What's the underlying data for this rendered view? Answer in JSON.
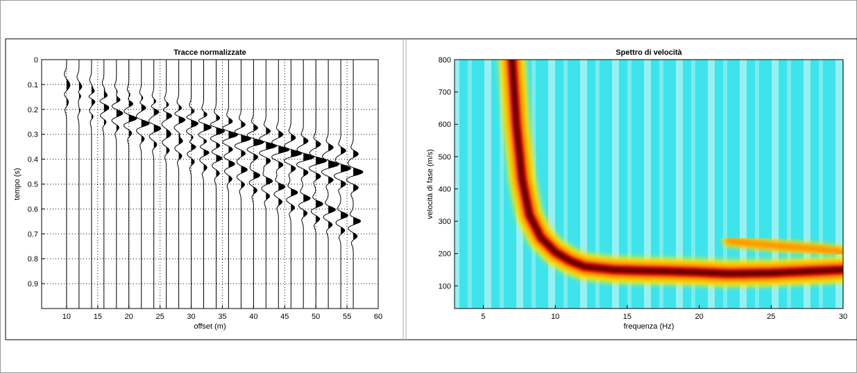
{
  "chart_data": [
    {
      "type": "wiggle",
      "title": "Tracce normalizzate",
      "xlabel": "offset (m)",
      "ylabel": "tempo (s)",
      "x": [
        10,
        12,
        14,
        16,
        18,
        20,
        22,
        24,
        26,
        28,
        30,
        32,
        34,
        36,
        38,
        40,
        42,
        44,
        46,
        48,
        50,
        52,
        54,
        56
      ],
      "arrivals": [
        [
          0.08,
          0.093,
          0.106,
          0.119,
          0.132,
          0.145,
          0.158,
          0.171,
          0.184,
          0.197,
          0.21,
          0.223,
          0.236,
          0.249,
          0.262,
          0.275,
          0.288,
          0.301,
          0.314,
          0.327,
          0.34,
          0.353,
          0.366,
          0.379
        ],
        [
          0.1,
          0.115,
          0.131,
          0.146,
          0.162,
          0.177,
          0.192,
          0.208,
          0.223,
          0.239,
          0.254,
          0.269,
          0.285,
          0.3,
          0.316,
          0.331,
          0.346,
          0.362,
          0.377,
          0.393,
          0.408,
          0.423,
          0.439,
          0.454
        ],
        [
          0.12,
          0.143,
          0.166,
          0.189,
          0.212,
          0.235,
          0.258,
          0.281,
          0.304,
          0.327,
          0.35,
          0.373,
          0.396,
          0.419,
          0.442,
          0.465,
          0.488,
          0.511,
          0.534,
          0.557,
          0.58,
          0.603,
          0.626,
          0.649
        ]
      ],
      "xlim": [
        6,
        60
      ],
      "ylim": [
        0,
        1
      ],
      "xticks": [
        10,
        15,
        20,
        25,
        30,
        35,
        40,
        45,
        50,
        55,
        60
      ],
      "yticks": [
        0,
        0.1,
        0.2,
        0.3,
        0.4,
        0.5,
        0.6,
        0.7,
        0.8,
        0.9
      ],
      "y_reversed": true,
      "grid": true,
      "color": "#000000"
    },
    {
      "type": "spectrum",
      "title": "Spettro di velocità",
      "xlabel": "frequenza (Hz)",
      "ylabel": "velocità di fase (m/s)",
      "series": [
        {
          "x": [
            7,
            7.3,
            7.7,
            8.2,
            9,
            10,
            11,
            12,
            14,
            16,
            18,
            20,
            22,
            25,
            30
          ],
          "values": [
            800,
            600,
            430,
            320,
            250,
            205,
            178,
            160,
            150,
            147,
            145,
            142,
            138,
            140,
            150
          ]
        },
        {
          "x": [
            22,
            24,
            26,
            28,
            30
          ],
          "values": [
            240,
            230,
            222,
            215,
            205
          ]
        }
      ],
      "xlim": [
        3,
        30
      ],
      "ylim": [
        30,
        800
      ],
      "xticks": [
        5,
        10,
        15,
        20,
        25,
        30
      ],
      "yticks": [
        100,
        200,
        300,
        400,
        500,
        600,
        700,
        800
      ],
      "colormap": [
        "#3fe3ea",
        "#ffee00",
        "#ff8000",
        "#cc0000",
        "#4a0000"
      ]
    }
  ]
}
